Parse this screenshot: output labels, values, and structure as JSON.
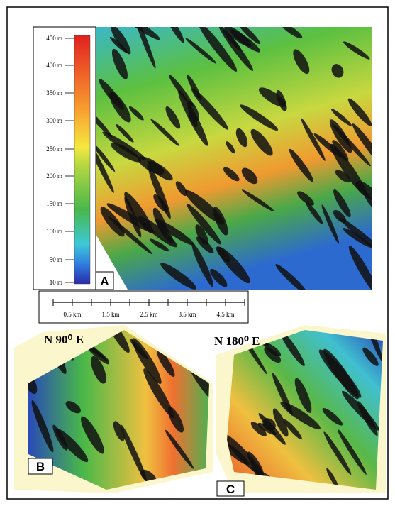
{
  "colorbar": {
    "labels": [
      "450 m",
      "400 m",
      "350 m",
      "300 m",
      "250 m",
      "200 m",
      "150 m",
      "100 m",
      "50 m",
      "10 m"
    ]
  },
  "scale_bar": {
    "labels": [
      "0.5 km",
      "1.5 km",
      "2.5 km",
      "3.5 km",
      "4.5 km"
    ]
  },
  "panels": [
    {
      "label": "A"
    },
    {
      "label": "B",
      "view": "N 90⁰ E"
    },
    {
      "label": "C",
      "view": "N 180⁰ E"
    }
  ]
}
